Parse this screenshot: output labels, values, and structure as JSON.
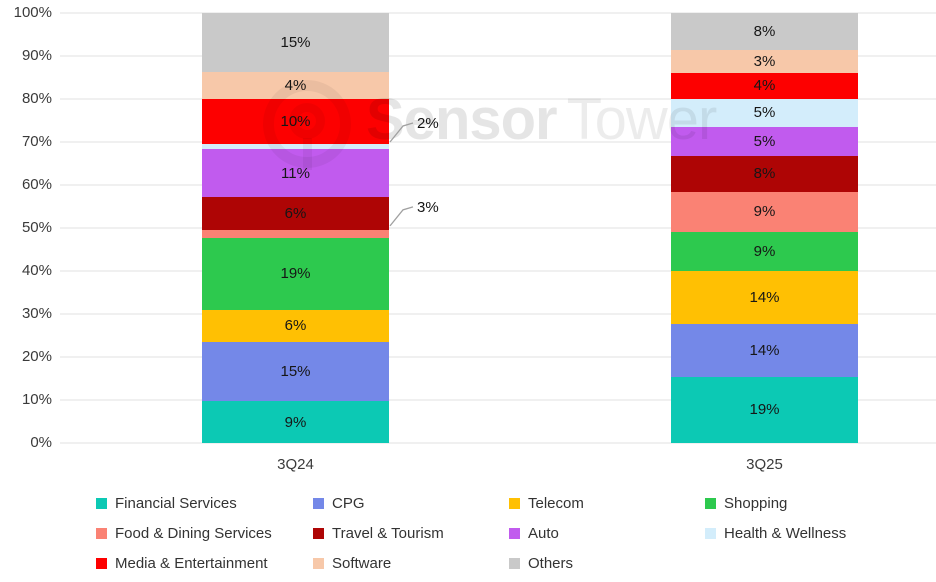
{
  "watermark": {
    "bold": "Sensor",
    "light": "Tower"
  },
  "chart_data": {
    "type": "bar",
    "stacked": true,
    "unit": "%",
    "categories": [
      "3Q24",
      "3Q25"
    ],
    "series": [
      {
        "name": "Financial Services",
        "color": "#0cc9b4",
        "values": [
          9,
          19
        ]
      },
      {
        "name": "CPG",
        "color": "#7488e8",
        "values": [
          15,
          14
        ]
      },
      {
        "name": "Telecom",
        "color": "#ffc003",
        "values": [
          6,
          14
        ]
      },
      {
        "name": "Shopping",
        "color": "#2dc94e",
        "values": [
          19,
          9
        ]
      },
      {
        "name": "Food & Dining Services",
        "color": "#fa8274",
        "values": [
          3,
          9
        ]
      },
      {
        "name": "Travel & Tourism",
        "color": "#ae0505",
        "values": [
          6,
          8
        ]
      },
      {
        "name": "Auto",
        "color": "#c15bee",
        "values": [
          11,
          5
        ]
      },
      {
        "name": "Health & Wellness",
        "color": "#d3edfb",
        "values": [
          2,
          5
        ]
      },
      {
        "name": "Media & Entertainment",
        "color": "#fd0000",
        "values": [
          10,
          4
        ]
      },
      {
        "name": "Software",
        "color": "#f7c8a9",
        "values": [
          4,
          3
        ]
      },
      {
        "name": "Others",
        "color": "#c9c9c9",
        "values": [
          15,
          8
        ]
      }
    ],
    "ylim": [
      0,
      100
    ],
    "y_ticks": [
      "100%",
      "90%",
      "80%",
      "70%",
      "60%",
      "50%",
      "40%",
      "30%",
      "20%",
      "10%",
      "0%"
    ],
    "grid": true,
    "legend_position": "bottom",
    "callouts": [
      {
        "category": "3Q24",
        "series": "Health & Wellness",
        "label": "2%"
      },
      {
        "category": "3Q24",
        "series": "Food & Dining Services",
        "label": "3%"
      }
    ]
  },
  "legend": {
    "rows": [
      [
        "Financial Services",
        "CPG",
        "Telecom",
        "Shopping"
      ],
      [
        "Food & Dining Services",
        "Travel & Tourism",
        "Auto",
        "Health & Wellness"
      ],
      [
        "Media & Entertainment",
        "Software",
        "Others"
      ]
    ]
  }
}
